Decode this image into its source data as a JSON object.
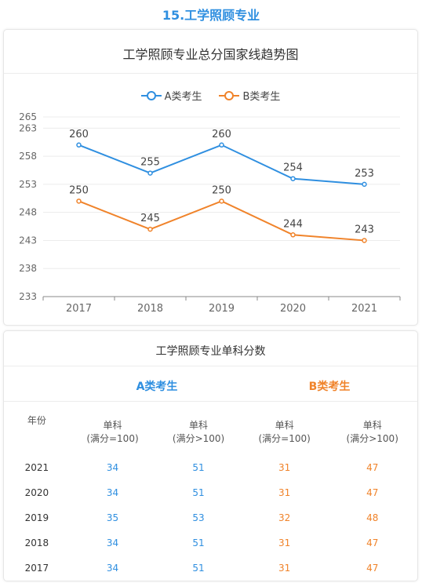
{
  "page_title": "15.工学照顾专业",
  "chart_data": {
    "type": "line",
    "title": "工学照顾专业总分国家线趋势图",
    "categories": [
      "2017",
      "2018",
      "2019",
      "2020",
      "2021"
    ],
    "series": [
      {
        "name": "A类考生",
        "values": [
          260,
          255,
          260,
          254,
          253
        ],
        "color": "#2f8fe0"
      },
      {
        "name": "B类考生",
        "values": [
          250,
          245,
          250,
          244,
          243
        ],
        "color": "#f0832a"
      }
    ],
    "y_ticks": [
      233,
      238,
      243,
      248,
      253,
      258,
      263,
      265
    ],
    "ylim": [
      233,
      265
    ],
    "legend_position": "top",
    "grid": true
  },
  "table": {
    "title": "工学照顾专业单科分数",
    "group_a_label": "A类考生",
    "group_b_label": "B类考生",
    "col_year": "年份",
    "col_single": "单科",
    "col_full_eq": "(满分=100)",
    "col_full_gt": "(满分>100)",
    "rows": [
      {
        "year": "2021",
        "a1": "34",
        "a2": "51",
        "b1": "31",
        "b2": "47"
      },
      {
        "year": "2020",
        "a1": "34",
        "a2": "51",
        "b1": "31",
        "b2": "47"
      },
      {
        "year": "2019",
        "a1": "35",
        "a2": "53",
        "b1": "32",
        "b2": "48"
      },
      {
        "year": "2018",
        "a1": "34",
        "a2": "51",
        "b1": "31",
        "b2": "47"
      },
      {
        "year": "2017",
        "a1": "34",
        "a2": "51",
        "b1": "31",
        "b2": "47"
      }
    ]
  }
}
